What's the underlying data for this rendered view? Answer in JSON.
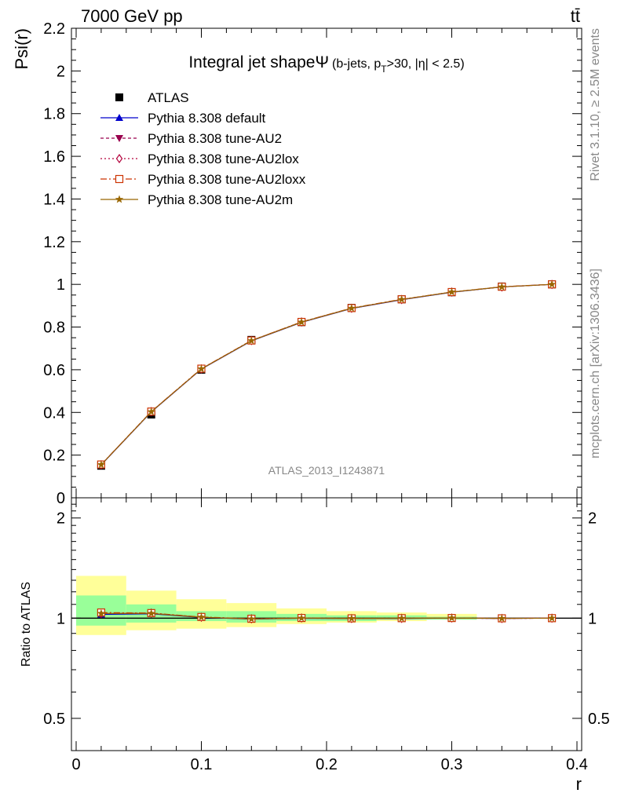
{
  "header": {
    "energy_label": "7000 GeV pp",
    "process_label": "tt̄"
  },
  "side_labels": {
    "rivet": "Rivet 3.1.10, ≥ 2.5M events",
    "mcplots": "mcplots.cern.ch [arXiv:1306.3436]"
  },
  "chart_data": {
    "type": "line",
    "title": "Integral jet shapeΨ",
    "title_sub": {
      "pre": "(b-jets, p",
      "sub": "T",
      "post": ">30, |η| < 2.5)"
    },
    "watermark": "ATLAS_2013_I1243871",
    "xlabel": "r",
    "ylabel": "Psi(r)",
    "ratio_ylabel": "Ratio to ATLAS",
    "xlim": [
      0,
      0.4
    ],
    "ylim": [
      0,
      2.2
    ],
    "ratio_ylim": [
      0.4,
      2.3
    ],
    "ratio_scale": "log",
    "x_ticks": [
      "0",
      "0.1",
      "0.2",
      "0.3",
      "0.4"
    ],
    "y_ticks": [
      "0",
      "0.2",
      "0.4",
      "0.6",
      "0.8",
      "1",
      "1.2",
      "1.4",
      "1.6",
      "1.8",
      "2",
      "2.2"
    ],
    "ratio_y_ticks": [
      "0.5",
      "1",
      "2"
    ],
    "legend_placement": "top-left",
    "x": [
      0.02,
      0.06,
      0.1,
      0.14,
      0.18,
      0.22,
      0.26,
      0.3,
      0.34,
      0.38
    ],
    "bins": [
      [
        0,
        0.04
      ],
      [
        0.04,
        0.08
      ],
      [
        0.08,
        0.12
      ],
      [
        0.12,
        0.16
      ],
      [
        0.16,
        0.2
      ],
      [
        0.2,
        0.24
      ],
      [
        0.24,
        0.28
      ],
      [
        0.28,
        0.32
      ],
      [
        0.32,
        0.36
      ],
      [
        0.36,
        0.4
      ]
    ],
    "data": {
      "name": "ATLAS",
      "values": [
        0.15,
        0.39,
        0.6,
        0.74,
        0.823,
        0.89,
        0.93,
        0.963,
        0.99,
        1.0
      ]
    },
    "ratio_bands": {
      "green_lo": [
        0.95,
        0.97,
        0.98,
        0.97,
        0.98,
        0.98,
        0.99,
        0.99,
        1.0,
        1.0
      ],
      "green_hi": [
        1.17,
        1.1,
        1.05,
        1.05,
        1.03,
        1.02,
        1.02,
        1.01,
        1.0,
        1.0
      ],
      "yellow_lo": [
        0.89,
        0.92,
        0.93,
        0.94,
        0.96,
        0.97,
        0.98,
        0.99,
        1.0,
        1.0
      ],
      "yellow_hi": [
        1.34,
        1.21,
        1.14,
        1.11,
        1.07,
        1.05,
        1.04,
        1.03,
        1.0,
        1.0
      ]
    },
    "series": [
      {
        "name": "Pythia 8.308 default",
        "color": "#0000cc",
        "dash": "",
        "marker": "triangle-up",
        "values": [
          0.154,
          0.402,
          0.603,
          0.735,
          0.822,
          0.887,
          0.928,
          0.963,
          0.988,
          1.0
        ]
      },
      {
        "name": "Pythia 8.308 tune-AU2",
        "color": "#99004d",
        "dash": "4,3",
        "marker": "triangle-down",
        "values": [
          0.155,
          0.403,
          0.604,
          0.736,
          0.823,
          0.888,
          0.929,
          0.964,
          0.988,
          1.0
        ]
      },
      {
        "name": "Pythia 8.308 tune-AU2lox",
        "color": "#b3003b",
        "dash": "2,3",
        "marker": "diamond-open",
        "values": [
          0.155,
          0.404,
          0.604,
          0.737,
          0.824,
          0.888,
          0.929,
          0.964,
          0.988,
          1.0
        ]
      },
      {
        "name": "Pythia 8.308 tune-AU2loxx",
        "color": "#cc3300",
        "dash": "8,3,2,3",
        "marker": "square-open",
        "values": [
          0.156,
          0.404,
          0.605,
          0.737,
          0.824,
          0.889,
          0.93,
          0.964,
          0.989,
          1.0
        ]
      },
      {
        "name": "Pythia 8.308 tune-AU2m",
        "color": "#996600",
        "dash": "",
        "marker": "star",
        "values": [
          0.155,
          0.403,
          0.604,
          0.736,
          0.823,
          0.888,
          0.929,
          0.964,
          0.988,
          1.0
        ]
      }
    ]
  }
}
